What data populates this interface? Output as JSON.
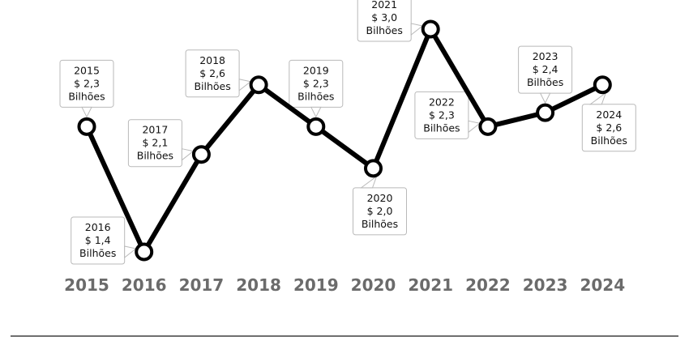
{
  "chart_data": {
    "type": "line",
    "title": "",
    "xlabel": "",
    "ylabel": "",
    "categories": [
      "2015",
      "2016",
      "2017",
      "2018",
      "2019",
      "2020",
      "2021",
      "2022",
      "2023",
      "2024"
    ],
    "series": [
      {
        "values": [
          2.3,
          1.4,
          2.1,
          2.6,
          2.3,
          2.0,
          3.0,
          2.3,
          2.4,
          2.6
        ],
        "color": "#000000"
      }
    ],
    "data_labels": [
      {
        "year": "2015",
        "value": "$ 2,3",
        "unit": "Bilhões",
        "side": "above"
      },
      {
        "year": "2016",
        "value": "$ 1,4",
        "unit": "Bilhões",
        "side": "left"
      },
      {
        "year": "2017",
        "value": "$ 2,1",
        "unit": "Bilhões",
        "side": "left"
      },
      {
        "year": "2018",
        "value": "$ 2,6",
        "unit": "Bilhões",
        "side": "left"
      },
      {
        "year": "2019",
        "value": "$ 2,3",
        "unit": "Bilhões",
        "side": "above"
      },
      {
        "year": "2020",
        "value": "$ 2,0",
        "unit": "Bilhões",
        "side": "below"
      },
      {
        "year": "2021",
        "value": "$ 3,0",
        "unit": "Bilhões",
        "side": "left"
      },
      {
        "year": "2022",
        "value": "$ 2,3",
        "unit": "Bilhões",
        "side": "left"
      },
      {
        "year": "2023",
        "value": "$ 2,4",
        "unit": "Bilhões",
        "side": "above"
      },
      {
        "year": "2024",
        "value": "$ 2,6",
        "unit": "Bilhões",
        "side": "below"
      }
    ],
    "ylim": [
      1.4,
      3.0
    ],
    "grid": false,
    "legend": "none"
  }
}
